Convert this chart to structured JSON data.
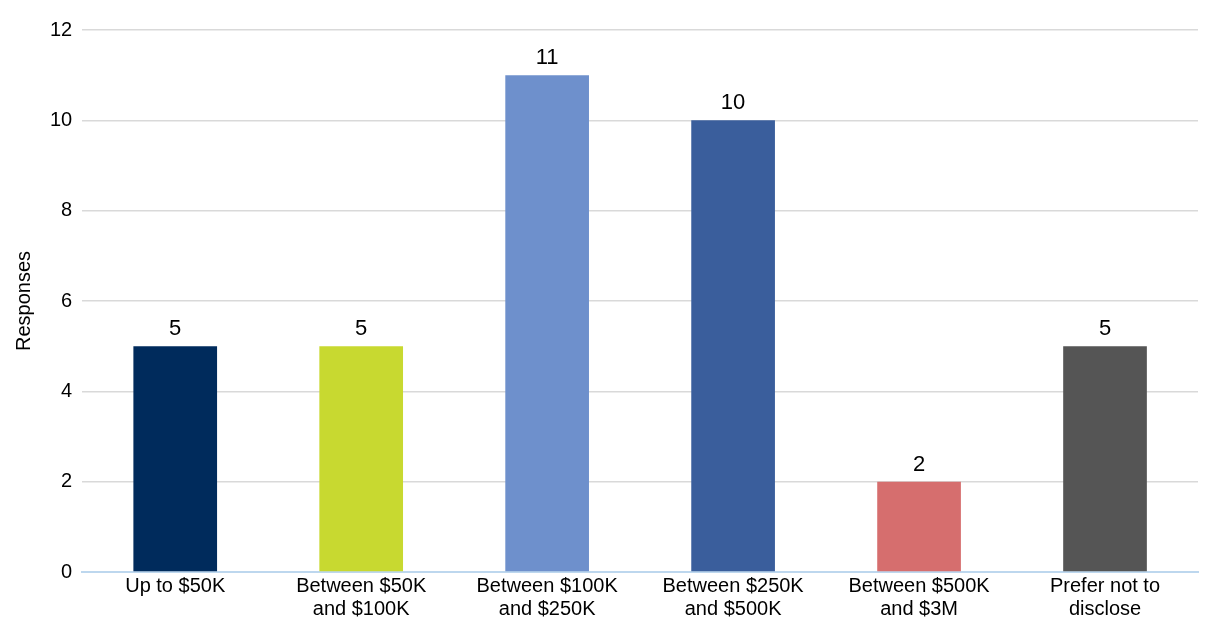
{
  "chart_data": {
    "type": "bar",
    "ylabel": "Responses",
    "categories": [
      "Up to $50K",
      "Between $50K and $100K",
      "Between $100K and $250K",
      "Between $250K and $500K",
      "Between $500K and $3M",
      "Prefer not to disclose"
    ],
    "values": [
      5,
      5,
      11,
      10,
      2,
      5
    ],
    "colors": [
      "#002b5c",
      "#c8d930",
      "#6e90cc",
      "#3a5e9c",
      "#d66e6e",
      "#555555"
    ],
    "ylim": [
      0,
      12
    ],
    "yticks": [
      0,
      2,
      4,
      6,
      8,
      10,
      12
    ],
    "grid": "y",
    "data_labels": true,
    "legend": false
  }
}
